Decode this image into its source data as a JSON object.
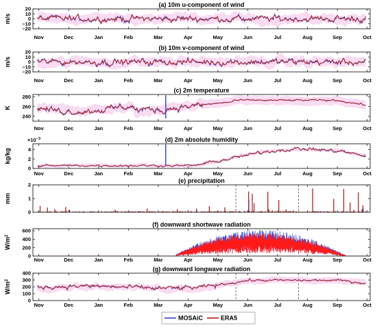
{
  "chart_data": [
    {
      "type": "line",
      "title": "(a) 10m u-component of wind",
      "ylabel": "m/s",
      "ylim": [
        -20,
        20
      ],
      "yticks": [
        "20",
        "10",
        "0",
        "−10",
        "−20"
      ],
      "yticks_values": [
        20,
        10,
        0,
        -10,
        -20
      ],
      "model": "wind"
    },
    {
      "type": "line",
      "title": "(b) 10m v-component of wind",
      "ylabel": "m/s",
      "ylim": [
        -20,
        20
      ],
      "yticks": [
        "20",
        "10",
        "0",
        "−10",
        "−20"
      ],
      "yticks_values": [
        20,
        10,
        0,
        -10,
        -20
      ],
      "model": "wind"
    },
    {
      "type": "line",
      "title": "(c) 2m temperature",
      "ylabel": "K",
      "ylim": [
        230,
        285
      ],
      "yticks": [
        "280",
        "260",
        "240"
      ],
      "yticks_values": [
        280,
        260,
        240
      ],
      "model": "temp",
      "spike_x": 4.25
    },
    {
      "type": "line",
      "title": "(d) 2m absolute humidity",
      "ylabel": "kg/kg",
      "ylim": [
        0,
        5.2
      ],
      "yticks": [
        "4",
        "2",
        "0"
      ],
      "yticks_values": [
        4,
        2,
        0
      ],
      "scale_note": "×10",
      "scale_exp": "−3",
      "model": "hum",
      "spike_x": 4.25
    },
    {
      "type": "line",
      "title": "(e) precipitation",
      "ylabel": "mm",
      "ylim": [
        0,
        2
      ],
      "yticks": [
        "2",
        "1",
        "0"
      ],
      "yticks_values": [
        2,
        1,
        0
      ],
      "model": "precip",
      "dashed_x": [
        6.6,
        8.7
      ]
    },
    {
      "type": "line",
      "title": "(f) downward shortwave radiation",
      "ylabel": "W/m",
      "ylabel_sup": "2",
      "ylim": [
        0,
        650
      ],
      "yticks": [
        "600",
        "400",
        "200",
        "0"
      ],
      "yticks_values": [
        600,
        400,
        200,
        0
      ],
      "model": "sw"
    },
    {
      "type": "line",
      "title": "(g) downward longwave radiation",
      "ylabel": "W/m",
      "ylabel_sup": "2",
      "ylim": [
        0,
        400
      ],
      "yticks": [
        "400",
        "300",
        "200",
        "100",
        "0"
      ],
      "yticks_values": [
        400,
        300,
        200,
        100,
        0
      ],
      "model": "lw",
      "dashed_x": [
        6.6,
        8.7
      ]
    }
  ],
  "x_axis": {
    "categories": [
      "Nov",
      "Dec",
      "Jan",
      "Feb",
      "Mar",
      "Apr",
      "May",
      "Jun",
      "Jul",
      "Aug",
      "Sep",
      "Oct"
    ],
    "x_range": [
      -0.2,
      11.1
    ]
  },
  "legend": {
    "placement": "bottom-center",
    "series": [
      {
        "name": "MOSAiC",
        "color": "#3b4ccf"
      },
      {
        "name": "ERA5",
        "color": "#b22222"
      }
    ]
  },
  "colors": {
    "mosaic": "#3b4ccf",
    "era5": "#b22222",
    "shading": "#f7d2ef"
  }
}
